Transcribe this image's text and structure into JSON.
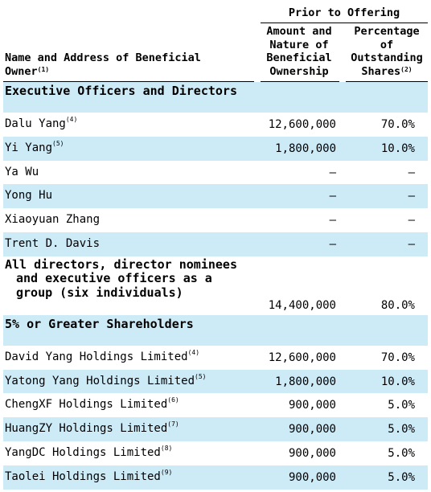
{
  "header": {
    "group_title": "Prior to Offering",
    "name_col": "Name and Address of Beneficial Owner",
    "name_col_note": "(1)",
    "amount_col": [
      "Amount and",
      "Nature of",
      "Beneficial",
      "Ownership"
    ],
    "pct_col": [
      "Percentage",
      "of",
      "Outstanding",
      "Shares"
    ],
    "pct_col_note": "(2)"
  },
  "rows": [
    {
      "type": "section",
      "name": "Executive Officers and Directors",
      "shaded": true
    },
    {
      "type": "data",
      "name": "Dalu Yang",
      "note": "(4)",
      "amount": "12,600,000",
      "pct": "70.0%",
      "shaded": false
    },
    {
      "type": "data",
      "name": "Yi Yang",
      "note": "(5)",
      "amount": "1,800,000",
      "pct": "10.0%",
      "shaded": true
    },
    {
      "type": "data",
      "name": "Ya Wu",
      "note": "",
      "amount": "—",
      "pct": "—",
      "shaded": false
    },
    {
      "type": "data",
      "name": "Yong Hu",
      "note": "",
      "amount": "—",
      "pct": "—",
      "shaded": true
    },
    {
      "type": "data",
      "name": "Xiaoyuan Zhang",
      "note": "",
      "amount": "—",
      "pct": "—",
      "shaded": false
    },
    {
      "type": "data",
      "name": "Trent D.  Davis",
      "note": "",
      "amount": "—",
      "pct": "—",
      "shaded": true
    },
    {
      "type": "multi",
      "name": "All directors, director nominees and executive officers as a group (six individuals)",
      "note": "",
      "amount": "14,400,000",
      "pct": "80.0%",
      "shaded": false
    },
    {
      "type": "section",
      "name": "5% or Greater Shareholders",
      "shaded": true
    },
    {
      "type": "data",
      "name": "David Yang Holdings Limited",
      "note": "(4)",
      "amount": "12,600,000",
      "pct": "70.0%",
      "shaded": false
    },
    {
      "type": "data",
      "name": "Yatong Yang Holdings Limited",
      "note": "(5)",
      "amount": "1,800,000",
      "pct": "10.0%",
      "shaded": true
    },
    {
      "type": "data",
      "name": "ChengXF Holdings Limited",
      "note": "(6)",
      "amount": "900,000",
      "pct": "5.0%",
      "shaded": false
    },
    {
      "type": "data",
      "name": "HuangZY Holdings Limited",
      "note": "(7)",
      "amount": "900,000",
      "pct": "5.0%",
      "shaded": true
    },
    {
      "type": "data",
      "name": "YangDC Holdings Limited",
      "note": "(8)",
      "amount": "900,000",
      "pct": "5.0%",
      "shaded": false
    },
    {
      "type": "data",
      "name": "Taolei Holdings Limited",
      "note": "(9)",
      "amount": "900,000",
      "pct": "5.0%",
      "shaded": true
    }
  ]
}
